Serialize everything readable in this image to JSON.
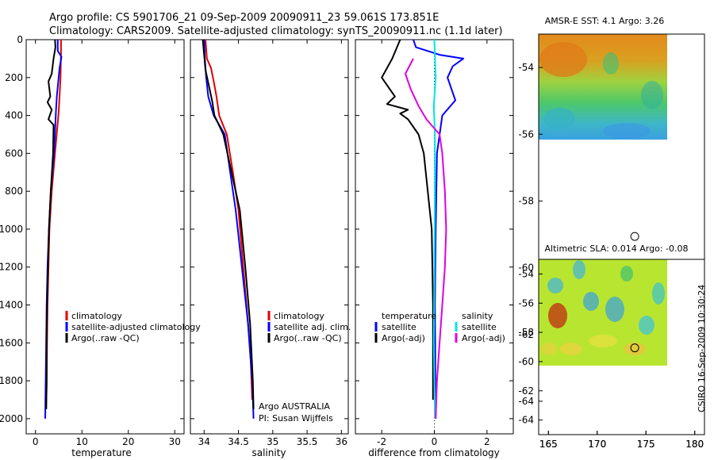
{
  "header": {
    "line1": "Argo profile: CS 5901706_21 09-Sep-2009 20090911_23 59.061S 173.851E",
    "line2": "Climatology: CARS2009. Satellite-adjusted climatology: synTS_20090911.nc (1.1d later)"
  },
  "side_stamp": "CSIRO 16-Sep-2009 10:30:24",
  "colors": {
    "red": "#e00000",
    "blue": "#0000ff",
    "black": "#000000",
    "cyan": "#00e5e5",
    "magenta": "#e000e0"
  },
  "chart_data": [
    {
      "type": "line",
      "id": "temperature",
      "xlabel": "temperature",
      "xlim": [
        -2,
        32
      ],
      "ylim": [
        2080,
        0
      ],
      "xticks": [
        0,
        10,
        20,
        30
      ],
      "yticks": [
        0,
        200,
        400,
        600,
        800,
        1000,
        1200,
        1400,
        1600,
        1800,
        2000
      ],
      "series": [
        {
          "name": "climatology",
          "color": "#e00000",
          "points": [
            [
              5.5,
              0
            ],
            [
              5.5,
              60
            ],
            [
              5.4,
              200
            ],
            [
              5.0,
              380
            ],
            [
              4.2,
              600
            ],
            [
              3.5,
              800
            ],
            [
              3.0,
              1000
            ],
            [
              2.8,
              1200
            ],
            [
              2.6,
              1400
            ],
            [
              2.5,
              1600
            ],
            [
              2.4,
              1800
            ],
            [
              2.3,
              1950
            ]
          ]
        },
        {
          "name": "satellite-adjusted climatology",
          "color": "#0000ff",
          "points": [
            [
              4.8,
              0
            ],
            [
              4.8,
              60
            ],
            [
              5.6,
              90
            ],
            [
              5.2,
              150
            ],
            [
              4.6,
              300
            ],
            [
              4.4,
              380
            ],
            [
              4.0,
              600
            ],
            [
              3.3,
              800
            ],
            [
              2.9,
              1000
            ],
            [
              2.6,
              1200
            ],
            [
              2.4,
              1400
            ],
            [
              2.3,
              1600
            ],
            [
              2.2,
              1800
            ],
            [
              2.1,
              2000
            ]
          ]
        },
        {
          "name": "Argo(..raw -QC)",
          "color": "#000000",
          "points": [
            [
              4.2,
              0
            ],
            [
              4.3,
              40
            ],
            [
              3.9,
              100
            ],
            [
              3.5,
              180
            ],
            [
              2.8,
              220
            ],
            [
              3.2,
              300
            ],
            [
              2.6,
              330
            ],
            [
              3.5,
              370
            ],
            [
              2.8,
              420
            ],
            [
              3.9,
              450
            ],
            [
              3.8,
              600
            ],
            [
              3.3,
              800
            ],
            [
              2.9,
              1000
            ],
            [
              2.7,
              1200
            ],
            [
              2.5,
              1400
            ],
            [
              2.4,
              1600
            ],
            [
              2.4,
              1800
            ],
            [
              2.3,
              1950
            ]
          ]
        }
      ],
      "legend": [
        "climatology",
        "satellite-adjusted climatology",
        "Argo(..raw -QC)"
      ]
    },
    {
      "type": "line",
      "id": "salinity",
      "xlabel": "salinity",
      "xlim": [
        33.8,
        36.1
      ],
      "ylim": [
        2080,
        0
      ],
      "xticks": [
        34,
        34.5,
        35,
        35.5,
        36
      ],
      "xticklabels": [
        "34",
        "34.5",
        "35",
        "35.5",
        "36"
      ],
      "series": [
        {
          "name": "climatology",
          "color": "#e00000",
          "points": [
            [
              34.02,
              0
            ],
            [
              34.04,
              100
            ],
            [
              34.1,
              150
            ],
            [
              34.14,
              220
            ],
            [
              34.18,
              300
            ],
            [
              34.22,
              400
            ],
            [
              34.33,
              500
            ],
            [
              34.42,
              700
            ],
            [
              34.5,
              900
            ],
            [
              34.57,
              1200
            ],
            [
              34.64,
              1500
            ],
            [
              34.68,
              1700
            ],
            [
              34.7,
              1900
            ]
          ]
        },
        {
          "name": "satellite adj. clim.",
          "color": "#0000ff",
          "points": [
            [
              34.0,
              0
            ],
            [
              34.01,
              100
            ],
            [
              34.03,
              200
            ],
            [
              34.06,
              300
            ],
            [
              34.14,
              400
            ],
            [
              34.3,
              500
            ],
            [
              34.38,
              700
            ],
            [
              34.46,
              900
            ],
            [
              34.55,
              1200
            ],
            [
              34.64,
              1500
            ],
            [
              34.7,
              1800
            ],
            [
              34.72,
              2000
            ]
          ]
        },
        {
          "name": "Argo(..raw -QC)",
          "color": "#000000",
          "points": [
            [
              33.98,
              0
            ],
            [
              34.0,
              80
            ],
            [
              34.02,
              160
            ],
            [
              34.08,
              260
            ],
            [
              34.12,
              330
            ],
            [
              34.15,
              400
            ],
            [
              34.28,
              500
            ],
            [
              34.4,
              700
            ],
            [
              34.52,
              900
            ],
            [
              34.6,
              1200
            ],
            [
              34.67,
              1500
            ],
            [
              34.71,
              1800
            ],
            [
              34.72,
              1950
            ]
          ]
        }
      ],
      "legend": [
        "climatology",
        "satellite adj. clim.",
        "Argo(..raw -QC)"
      ],
      "annotation": [
        "Argo AUSTRALIA",
        "PI: Susan Wijffels"
      ]
    },
    {
      "type": "line",
      "id": "difference",
      "xlabel": "difference from climatology",
      "xlim": [
        -3,
        3
      ],
      "ylim": [
        2080,
        0
      ],
      "xticks": [
        -2,
        0,
        2
      ],
      "zero_line": "dotted",
      "series": [
        {
          "name": "temperature satellite",
          "color": "#0000ff",
          "points": [
            [
              -0.8,
              0
            ],
            [
              -0.7,
              40
            ],
            [
              0.2,
              80
            ],
            [
              1.1,
              100
            ],
            [
              0.7,
              140
            ],
            [
              0.5,
              200
            ],
            [
              0.8,
              320
            ],
            [
              0.3,
              400
            ],
            [
              0.1,
              600
            ],
            [
              0.05,
              1000
            ],
            [
              0.02,
              1400
            ],
            [
              0.05,
              2000
            ]
          ]
        },
        {
          "name": "temperature Argo(-adj)",
          "color": "#000000",
          "points": [
            [
              -1.3,
              0
            ],
            [
              -1.6,
              100
            ],
            [
              -2.0,
              200
            ],
            [
              -1.5,
              300
            ],
            [
              -1.8,
              340
            ],
            [
              -1.0,
              370
            ],
            [
              -1.3,
              390
            ],
            [
              -1.0,
              420
            ],
            [
              -0.6,
              500
            ],
            [
              -0.4,
              600
            ],
            [
              -0.25,
              800
            ],
            [
              -0.1,
              1000
            ],
            [
              -0.05,
              1400
            ],
            [
              -0.05,
              1900
            ]
          ]
        },
        {
          "name": "salinity satellite",
          "color": "#00e5e5",
          "points": [
            [
              0.0,
              0
            ],
            [
              0.05,
              200
            ],
            [
              -0.02,
              350
            ],
            [
              0.02,
              500
            ],
            [
              0.02,
              800
            ],
            [
              0.0,
              1200
            ],
            [
              -0.02,
              1600
            ],
            [
              0.02,
              2000
            ]
          ]
        },
        {
          "name": "salinity Argo(-adj)",
          "color": "#e000e0",
          "points": [
            [
              -0.8,
              100
            ],
            [
              -1.1,
              180
            ],
            [
              -0.9,
              260
            ],
            [
              -0.6,
              350
            ],
            [
              -0.3,
              420
            ],
            [
              0.2,
              500
            ],
            [
              0.3,
              600
            ],
            [
              0.4,
              800
            ],
            [
              0.45,
              1000
            ],
            [
              0.4,
              1200
            ],
            [
              0.3,
              1400
            ],
            [
              0.2,
              1600
            ],
            [
              0.1,
              1800
            ],
            [
              0.05,
              2000
            ]
          ]
        }
      ],
      "legend_left": [
        "temperature",
        "satellite",
        "Argo(-adj)"
      ],
      "legend_right": [
        "salinity",
        "satellite",
        "Argo(-adj)"
      ]
    },
    {
      "type": "heatmap",
      "id": "sst",
      "title": "AMSR-E SST: 4.1  Argo: 3.26",
      "xlim": [
        164,
        181
      ],
      "ylim": [
        -65,
        -53
      ],
      "xticks": [
        165,
        170,
        175,
        180
      ],
      "yticks": [
        -54,
        -56,
        -58,
        -60,
        -62,
        -64
      ],
      "marker": [
        173.851,
        -59.061
      ]
    },
    {
      "type": "heatmap",
      "id": "sla",
      "title": "Altimetric SLA: 0.014  Argo: -0.08",
      "xlim": [
        164,
        181
      ],
      "ylim": [
        -65,
        -53
      ],
      "xticks": [
        165,
        170,
        175,
        180
      ],
      "yticks": [
        -54,
        -56,
        -58,
        -60,
        -62,
        -64
      ],
      "marker": [
        173.851,
        -59.061
      ]
    }
  ]
}
